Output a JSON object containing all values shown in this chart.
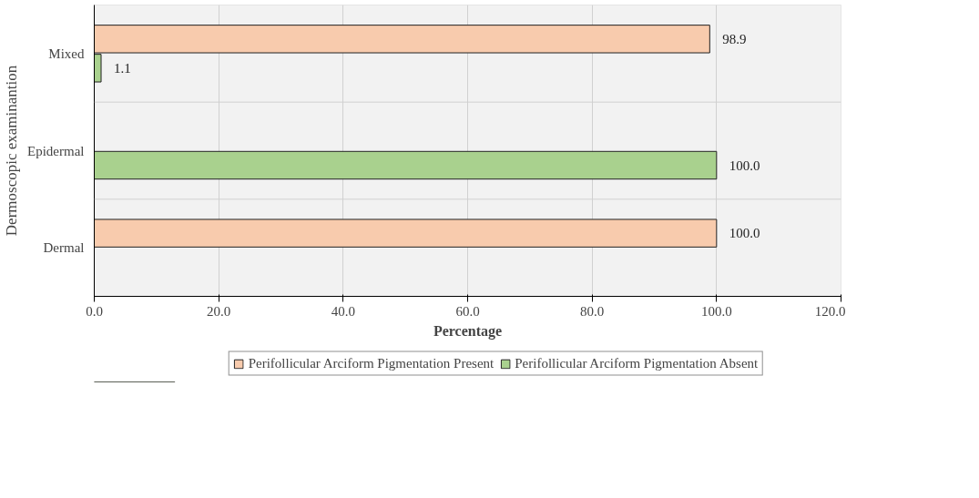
{
  "chart_data": {
    "type": "bar",
    "orientation": "horizontal",
    "xlabel": "Percentage",
    "ylabel": "Dermoscopic examinantion",
    "categories": [
      "Mixed",
      "Epidermal",
      "Dermal"
    ],
    "series": [
      {
        "name": "Perifollicular Arciform Pigmentation Present",
        "color": "#f8cbad",
        "values": [
          98.9,
          null,
          100.0
        ],
        "value_labels": [
          "98.9",
          null,
          "100.0"
        ]
      },
      {
        "name": "Perifollicular Arciform Pigmentation Absent",
        "color": "#a9d18e",
        "values": [
          1.1,
          100.0,
          null
        ],
        "value_labels": [
          "1.1",
          "100.0",
          null
        ]
      }
    ],
    "xlim": [
      0,
      120
    ],
    "xticks": [
      {
        "value": 0,
        "label": "0.0"
      },
      {
        "value": 20,
        "label": "20.0"
      },
      {
        "value": 40,
        "label": "40.0"
      },
      {
        "value": 60,
        "label": "60.0"
      },
      {
        "value": 80,
        "label": "80.0"
      },
      {
        "value": 100,
        "label": "100.0"
      },
      {
        "value": 120,
        "label": "120.0"
      }
    ],
    "grid": true,
    "legend": "bottom"
  }
}
